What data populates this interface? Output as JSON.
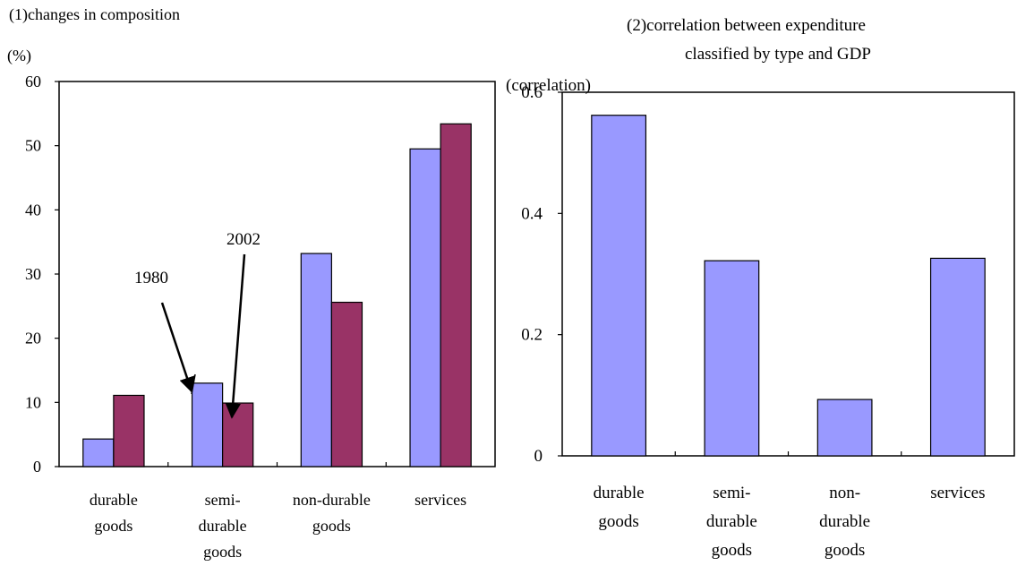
{
  "colors": {
    "series1": "#9999ff",
    "series2": "#993366",
    "axis": "#000000",
    "background": "#ffffff"
  },
  "chart_data": [
    {
      "type": "bar",
      "title": "(1)changes in composition",
      "ylabel": "(%)",
      "xlabel": "",
      "ylim": [
        0,
        60
      ],
      "yticks": [
        "0",
        "10",
        "20",
        "30",
        "40",
        "50",
        "60"
      ],
      "grid": false,
      "categories": [
        [
          "durable",
          "goods"
        ],
        [
          "semi-",
          "durable",
          "goods"
        ],
        [
          "non-durable",
          "goods"
        ],
        [
          "services"
        ]
      ],
      "series": [
        {
          "name": "1980",
          "values": [
            4.3,
            13.0,
            33.2,
            49.5
          ]
        },
        {
          "name": "2002",
          "values": [
            11.1,
            9.9,
            25.6,
            53.4
          ]
        }
      ],
      "annotations": [
        {
          "text": "1980",
          "points_to": "semi-durable goods / 1980"
        },
        {
          "text": "2002",
          "points_to": "semi-durable goods / 2002"
        }
      ]
    },
    {
      "type": "bar",
      "title": [
        "(2)correlation between expenditure",
        "classified by type and GDP"
      ],
      "ylabel": "(correlation)",
      "xlabel": "",
      "ylim": [
        0,
        0.6
      ],
      "yticks": [
        "0",
        "0.2",
        "0.4",
        "0.6"
      ],
      "grid": false,
      "categories": [
        [
          "durable",
          "goods"
        ],
        [
          "semi-",
          "durable",
          "goods"
        ],
        [
          "non-",
          "durable",
          "goods"
        ],
        [
          "services"
        ]
      ],
      "series": [
        {
          "values": [
            0.562,
            0.322,
            0.093,
            0.326
          ]
        }
      ]
    }
  ]
}
